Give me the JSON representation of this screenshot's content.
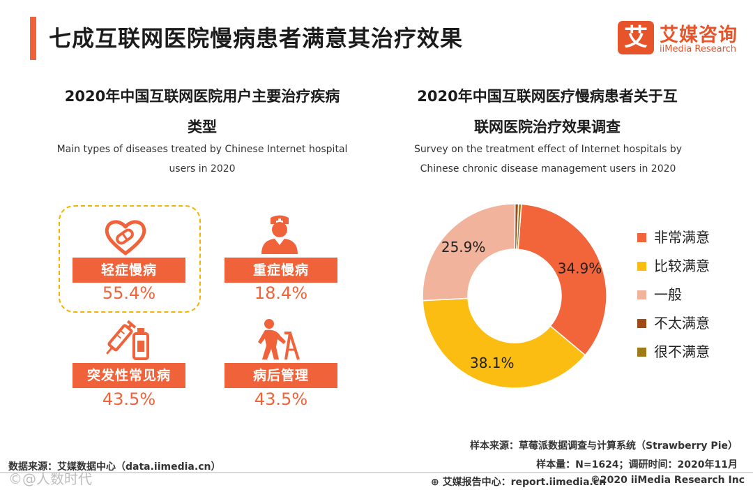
{
  "header": {
    "title": "七成互联网医院慢病患者满意其治疗效果",
    "logo_mark": "艾",
    "logo_cn": "艾媒咨询",
    "logo_en": "iiMedia Research"
  },
  "left": {
    "title_line1": "2020年中国互联网医院用户主要治疗疾病",
    "title_line2": "类型",
    "subtitle_line1": "Main types of diseases treated by Chinese Internet hospital",
    "subtitle_line2": "users in 2020",
    "categories": [
      {
        "label": "轻症慢病",
        "value": "55.4%",
        "icon": "heart-pill-icon"
      },
      {
        "label": "重症慢病",
        "value": "18.4%",
        "icon": "nurse-icon"
      },
      {
        "label": "突发性常见病",
        "value": "43.5%",
        "icon": "syringe-bottle-icon"
      },
      {
        "label": "病后管理",
        "value": "43.5%",
        "icon": "elderly-walker-icon"
      }
    ]
  },
  "right": {
    "title_line1": "2020年中国互联网医疗慢病患者关于互",
    "title_line2": "联网医院治疗效果调查",
    "subtitle_line1": "Survey on the treatment effect of Internet hospitals by",
    "subtitle_line2": "Chinese chronic disease management users in 2020"
  },
  "chart_data": {
    "type": "pie",
    "donut": true,
    "labels": [
      "非常满意",
      "比较满意",
      "一般",
      "不太满意",
      "很不满意"
    ],
    "values": [
      34.9,
      38.1,
      25.9,
      0.6,
      0.5
    ],
    "value_labels": [
      "34.9%",
      "38.1%",
      "25.9%",
      "",
      ""
    ],
    "colors": [
      "#f2643a",
      "#fbbd12",
      "#f1b39b",
      "#a24a14",
      "#9e7a18"
    ],
    "legend_position": "right"
  },
  "footer": {
    "sample_source": "样本来源：草莓派数据调查与计算系统（Strawberry Pie）",
    "sample_size": "样本量：N=1624；调研时间：2020年11月",
    "data_source": "数据来源：艾媒数据中心（data.iimedia.cn）",
    "report_center": "艾媒报告中心：report.iimedia.cn",
    "copyright": "©2020  iiMedia Research  Inc",
    "watermark": "©@人数时代"
  }
}
